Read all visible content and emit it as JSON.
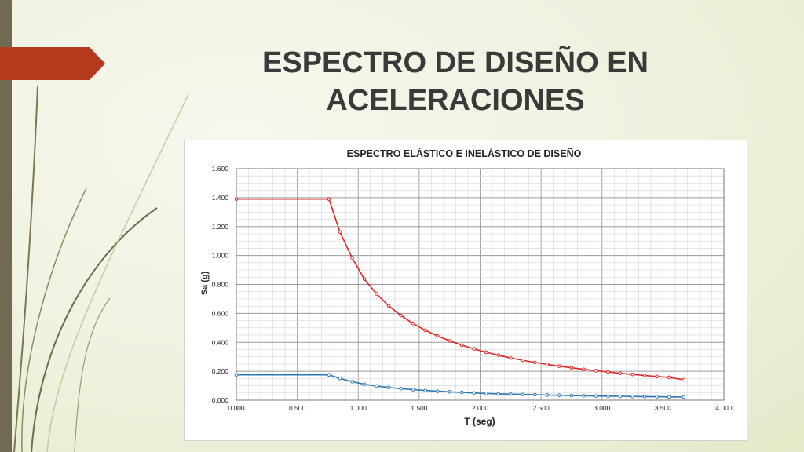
{
  "slide": {
    "title": "ESPECTRO DE DISEÑO EN\nACELERACIONES",
    "accent_color": "#b5391c",
    "bar_color": "#6f6a51"
  },
  "chart_data": {
    "type": "line",
    "title": "ESPECTRO ELÁSTICO E INELÁSTICO DE DISEÑO",
    "xlabel": "T (seg)",
    "ylabel": "Sa (g)",
    "xlim": [
      0,
      4
    ],
    "ylim": [
      0,
      1.6
    ],
    "x_ticks": [
      "0.000",
      "0.500",
      "1.000",
      "1.500",
      "2.000",
      "2.500",
      "3.000",
      "3.500",
      "4.000"
    ],
    "y_ticks": [
      "0.000",
      "0.200",
      "0.400",
      "0.600",
      "0.800",
      "1.000",
      "1.200",
      "1.400",
      "1.600"
    ],
    "grid": true,
    "series": [
      {
        "color": "#e02424",
        "x": [
          0.0,
          0.76,
          0.85,
          0.95,
          1.05,
          1.15,
          1.25,
          1.35,
          1.45,
          1.55,
          1.65,
          1.75,
          1.85,
          1.95,
          2.05,
          2.15,
          2.25,
          2.35,
          2.45,
          2.55,
          2.65,
          2.75,
          2.85,
          2.95,
          3.05,
          3.15,
          3.25,
          3.35,
          3.45,
          3.55,
          3.67
        ],
        "y": [
          1.39,
          1.39,
          1.162,
          0.984,
          0.837,
          0.735,
          0.652,
          0.585,
          0.53,
          0.483,
          0.444,
          0.41,
          0.38,
          0.354,
          0.331,
          0.311,
          0.292,
          0.276,
          0.261,
          0.247,
          0.235,
          0.224,
          0.213,
          0.204,
          0.195,
          0.186,
          0.178,
          0.171,
          0.164,
          0.158,
          0.141
        ]
      },
      {
        "color": "#2e75b6",
        "x": [
          0.0,
          0.76,
          0.85,
          0.95,
          1.05,
          1.15,
          1.25,
          1.35,
          1.45,
          1.55,
          1.65,
          1.75,
          1.85,
          1.95,
          2.05,
          2.15,
          2.25,
          2.35,
          2.45,
          2.55,
          2.65,
          2.75,
          2.85,
          2.95,
          3.05,
          3.15,
          3.25,
          3.35,
          3.45,
          3.55,
          3.67
        ],
        "y": [
          0.175,
          0.175,
          0.15,
          0.128,
          0.11,
          0.098,
          0.088,
          0.08,
          0.073,
          0.067,
          0.062,
          0.058,
          0.054,
          0.05,
          0.047,
          0.044,
          0.042,
          0.04,
          0.038,
          0.036,
          0.034,
          0.032,
          0.031,
          0.029,
          0.028,
          0.027,
          0.026,
          0.025,
          0.024,
          0.023,
          0.022
        ]
      }
    ]
  }
}
